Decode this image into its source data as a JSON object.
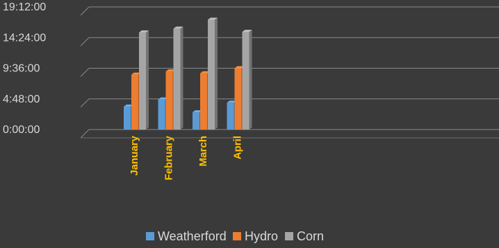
{
  "chart_data": {
    "type": "bar",
    "style": "3d-clustered-column",
    "categories": [
      "January",
      "February",
      "March",
      "April"
    ],
    "y_ticks": [
      "0:00:00",
      "4:48:00",
      "9:36:00",
      "14:24:00",
      "19:12:00"
    ],
    "ylim_hours": [
      0,
      19.2
    ],
    "series": [
      {
        "name": "Weatherford",
        "color": "#5b9bd5",
        "values_hours": [
          3.6,
          4.7,
          2.7,
          4.2
        ]
      },
      {
        "name": "Hydro",
        "color": "#ed7d31",
        "values_hours": [
          8.6,
          9.1,
          8.8,
          9.6
        ]
      },
      {
        "name": "Corn",
        "color": "#a5a5a5",
        "values_hours": [
          15.2,
          15.8,
          17.2,
          15.3
        ]
      }
    ],
    "legend_position": "bottom",
    "grid": true,
    "category_label_color": "#ffc000"
  }
}
